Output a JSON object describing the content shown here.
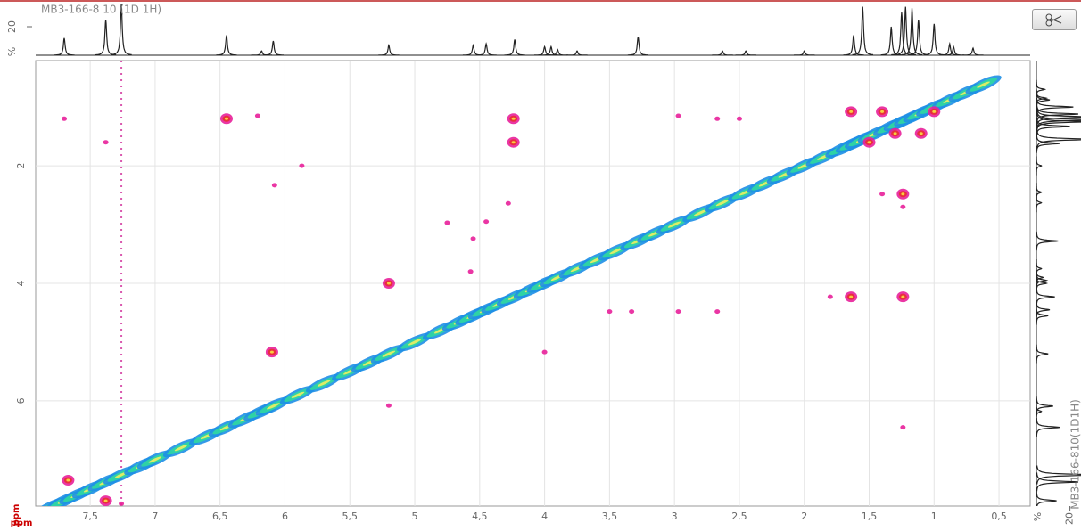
{
  "chart_data": [
    {
      "type": "scatter",
      "xlim": [
        7.92,
        0.26
      ],
      "ylim": [
        0.21,
        7.79
      ],
      "xticks": [
        {
          "value": 7.5,
          "label": "7,5"
        },
        7,
        {
          "value": 6.5,
          "label": "6,5"
        },
        6,
        {
          "value": 5.5,
          "label": "5,5"
        },
        5,
        {
          "value": 4.5,
          "label": "4,5"
        },
        4,
        {
          "value": 3.5,
          "label": "3,5"
        },
        3,
        {
          "value": 2.5,
          "label": "2,5"
        },
        2,
        {
          "value": 1.5,
          "label": "1,5"
        },
        1,
        {
          "value": 0.5,
          "label": "0,5"
        }
      ],
      "yticks": [
        2,
        4,
        6
      ],
      "x_label": "ppm",
      "y_label": "ppm",
      "grid": true,
      "t1_noise_x": 7.26,
      "series": [
        {
          "color": "#1e8fe6",
          "x": [
            7.8,
            7.7,
            7.6,
            7.5,
            7.38,
            7.26,
            7.1,
            7.0,
            6.8,
            6.6,
            6.45,
            6.3,
            6.18,
            6.09,
            5.9,
            5.7,
            5.5,
            5.35,
            5.2,
            5.0,
            4.8,
            4.65,
            4.55,
            4.45,
            4.35,
            4.23,
            4.1,
            4.0,
            3.9,
            3.75,
            3.6,
            3.45,
            3.28,
            3.15,
            3.0,
            2.8,
            2.63,
            2.45,
            2.3,
            2.15,
            2.0,
            1.85,
            1.7,
            1.62,
            1.55,
            1.45,
            1.33,
            1.25,
            1.17,
            1.1,
            1.0,
            0.88,
            0.75,
            0.62
          ],
          "y": [
            7.8,
            7.7,
            7.6,
            7.5,
            7.38,
            7.26,
            7.1,
            7.0,
            6.8,
            6.6,
            6.45,
            6.3,
            6.18,
            6.09,
            5.9,
            5.7,
            5.5,
            5.35,
            5.2,
            5.0,
            4.8,
            4.65,
            4.55,
            4.45,
            4.35,
            4.23,
            4.1,
            4.0,
            3.9,
            3.75,
            3.6,
            3.45,
            3.28,
            3.15,
            3.0,
            2.8,
            2.63,
            2.45,
            2.3,
            2.15,
            2.0,
            1.85,
            1.7,
            1.62,
            1.55,
            1.45,
            1.33,
            1.25,
            1.17,
            1.1,
            1.0,
            0.88,
            0.75,
            0.62
          ]
        },
        {
          "color": "#e8209a",
          "x": [
            7.7,
            7.38,
            6.21,
            6.08,
            5.87,
            4.75,
            4.57,
            4.55,
            4.28,
            4.0,
            3.5,
            3.33,
            2.97,
            2.97,
            2.67,
            2.67,
            2.5,
            1.8,
            1.24,
            1.4,
            1.24,
            7.26,
            5.2,
            4.45
          ],
          "y": [
            1.2,
            1.6,
            1.15,
            2.33,
            2.0,
            2.97,
            3.8,
            3.24,
            2.64,
            5.17,
            4.48,
            4.48,
            4.48,
            1.15,
            4.48,
            1.2,
            1.2,
            4.23,
            6.45,
            2.48,
            2.7,
            7.75,
            6.08,
            2.95
          ]
        },
        {
          "color": "#e8209a",
          "x": [
            6.45,
            4.24,
            4.24,
            5.2,
            6.1,
            1.64,
            1.24,
            1.24,
            1.64,
            1.4,
            1.1,
            1.3,
            1.5,
            1.0,
            7.67,
            7.38
          ],
          "y": [
            1.2,
            1.2,
            1.6,
            4.0,
            5.17,
            4.23,
            4.23,
            2.48,
            1.08,
            1.08,
            1.45,
            1.45,
            1.6,
            1.08,
            7.35,
            7.7
          ]
        }
      ]
    },
    {
      "type": "line",
      "title": "MB3-166-8 10 (1D 1H)",
      "ylim": [
        0,
        35
      ],
      "yticks": [
        20
      ],
      "y_label": "%",
      "color": "#222222",
      "x": [
        7.7,
        7.38,
        7.26,
        6.45,
        6.18,
        6.09,
        5.2,
        4.55,
        4.45,
        4.23,
        4.0,
        3.95,
        3.9,
        3.75,
        3.28,
        2.63,
        2.45,
        2.0,
        1.62,
        1.55,
        1.33,
        1.25,
        1.22,
        1.17,
        1.12,
        1.0,
        0.88,
        0.85,
        0.7
      ],
      "values": [
        12,
        25,
        36,
        14,
        3,
        10,
        7,
        7,
        8,
        11,
        6,
        6,
        4,
        3,
        13,
        3,
        3,
        3,
        14,
        34,
        20,
        30,
        34,
        33,
        25,
        22,
        8,
        6,
        5
      ]
    },
    {
      "type": "line",
      "title": "MB3-166-810(1D1H)",
      "xlim": [
        0,
        25
      ],
      "xticks": [
        20
      ],
      "x_label": "%"
    }
  ]
}
